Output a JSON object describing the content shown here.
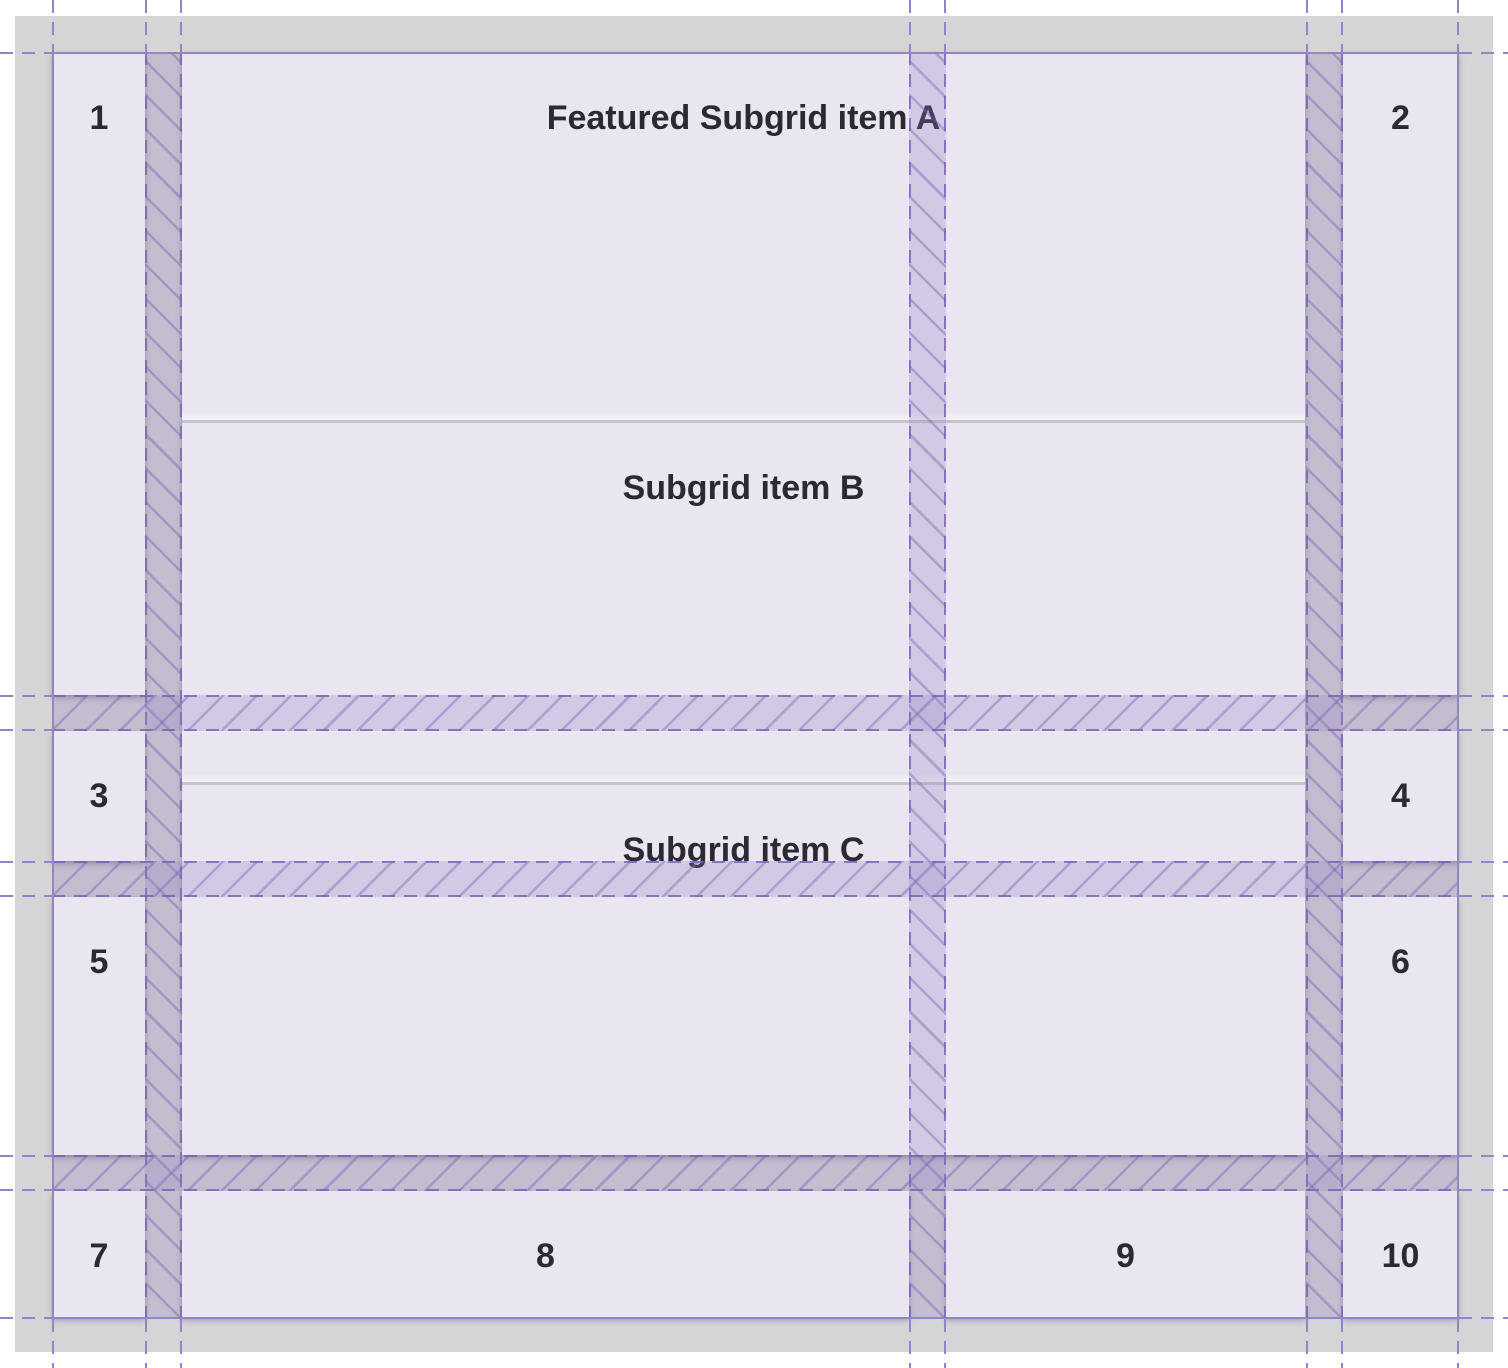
{
  "grid": {
    "numbered_items": [
      "1",
      "2",
      "3",
      "4",
      "5",
      "6",
      "7",
      "8",
      "9",
      "10"
    ],
    "featured_subgrid": {
      "item_a_label": "Featured Subgrid item A",
      "item_b_label": "Subgrid item B",
      "item_c_label": "Subgrid item C"
    }
  },
  "colors": {
    "page_bg": "#ffffff",
    "container_bg": "#d5d4d6",
    "item_bg": "#e9e6f1",
    "text": "#2b2933",
    "separator": "#c5c4ca"
  },
  "overlay": {
    "line": "#9383cb",
    "solid_line": "#9186c2",
    "gap_fill": "rgba(148,124,194,0.26)",
    "edge": "rgba(120,96,178,0.8)",
    "hatch": "rgba(120,96,178,0.42)"
  }
}
